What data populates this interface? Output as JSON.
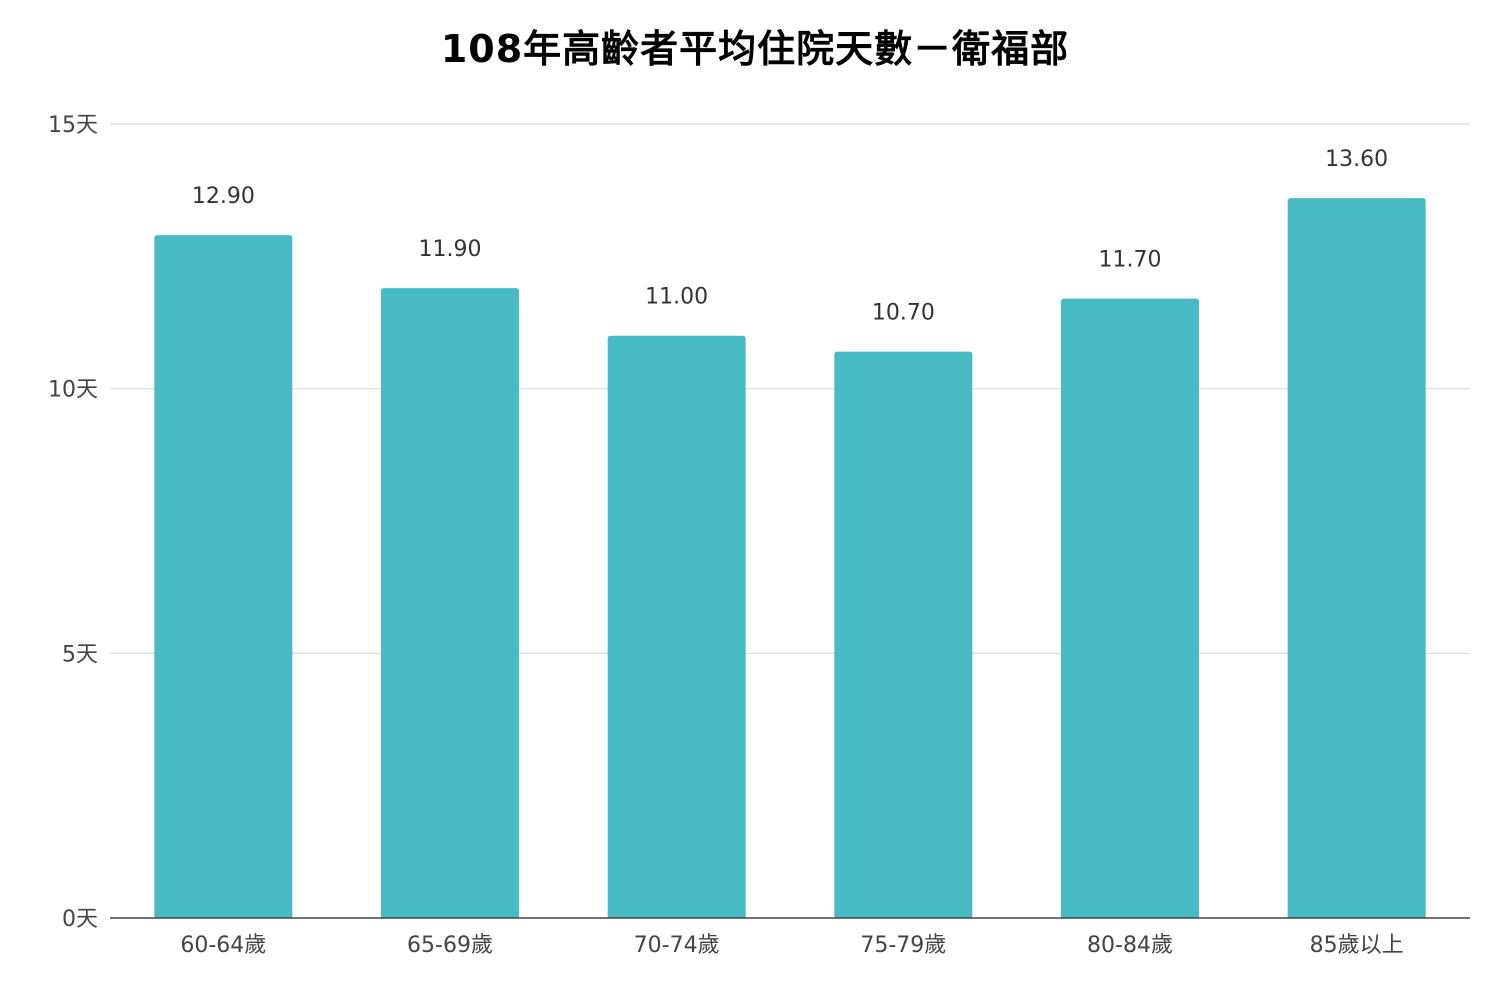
{
  "chart_data": {
    "type": "bar",
    "title": "108年高齡者平均住院天數－衛福部",
    "categories": [
      "60-64歲",
      "65-69歲",
      "70-74歲",
      "75-79歲",
      "80-84歲",
      "85歲以上"
    ],
    "values": [
      12.9,
      11.9,
      11.0,
      10.7,
      11.7,
      13.6
    ],
    "value_labels": [
      "12.90",
      "11.90",
      "11.00",
      "10.70",
      "11.70",
      "13.60"
    ],
    "y_ticks": [
      0,
      5,
      10,
      15
    ],
    "y_tick_labels": [
      "0天",
      "5天",
      "10天",
      "15天"
    ],
    "ylim": [
      0,
      15
    ],
    "xlabel": "",
    "ylabel": "",
    "grid": true,
    "legend": "none",
    "colors": {
      "bar": "#47BAC4",
      "grid": "#D9D9D9",
      "axis": "#444444"
    }
  }
}
